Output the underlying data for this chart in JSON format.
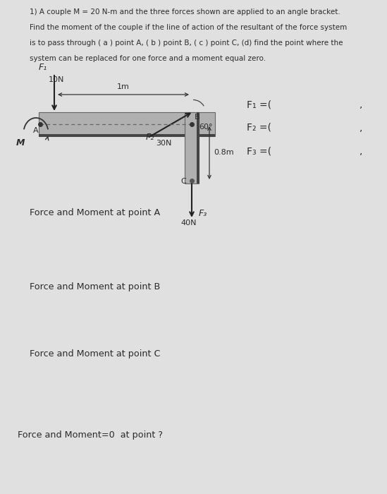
{
  "bg_color": "#e0e0e0",
  "title_lines": [
    "1) A couple M = 20 N-m and the three forces shown are applied to an angle bracket.",
    "Find the moment of the couple if the line of action of the resultant of the force system",
    "is to pass through ( a ) point A, ( b ) point B, ( c ) point C, (d) find the point where the",
    "system can be replaced for one force and a moment equal zero."
  ],
  "labels": {
    "F1_label": "F₁",
    "F2_label": "F₂",
    "F3_label": "F₃",
    "F1_val": "10N",
    "F2_val": "30N",
    "F3_val": "40N",
    "dist_1m": "1m",
    "dist_08m": "0.8m",
    "angle_60": "60°",
    "point_A": "A",
    "point_B": "B",
    "point_C": "C",
    "moment_M": "M",
    "eq_F1": "F₁ =(",
    "eq_F2": "F₂ =(",
    "eq_F3": "F₃ =(",
    "comma": ","
  },
  "section_labels": [
    "Force and Moment at point A",
    "Force and Moment at point B",
    "Force and Moment at point C",
    "Force and Moment=0  at point ?"
  ],
  "text_color": "#2a2a2a",
  "beam_fill": "#b0b0b0",
  "beam_edge": "#666666",
  "beam_dark": "#444444"
}
